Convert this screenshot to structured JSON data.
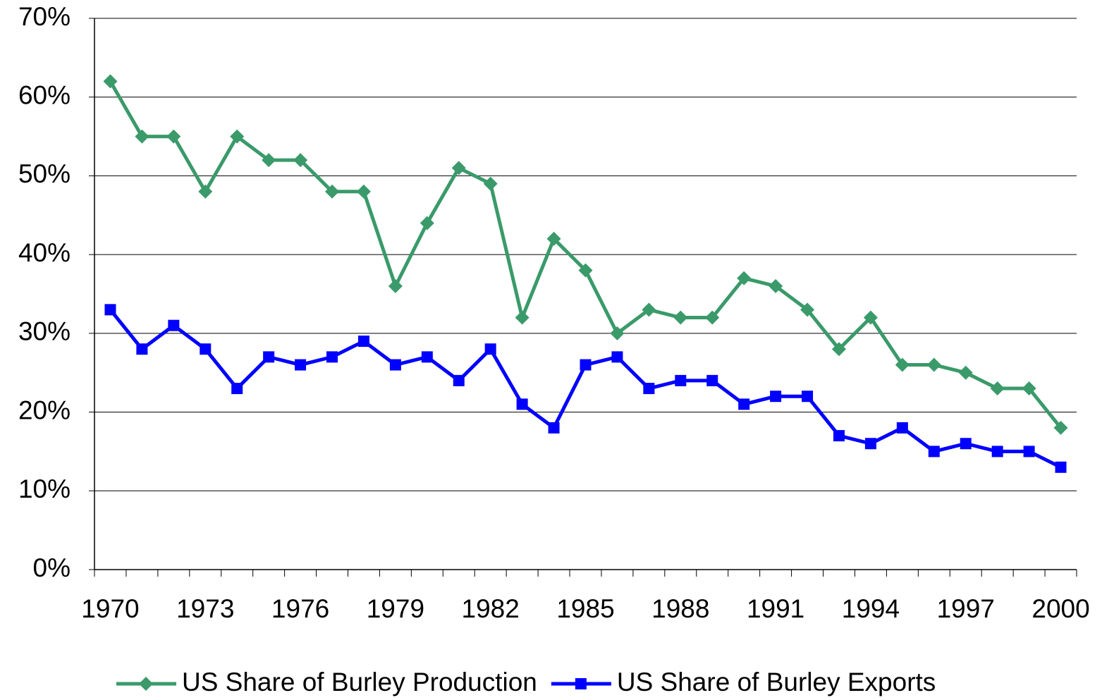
{
  "chart_data": {
    "type": "line",
    "categories": [
      "1970",
      null,
      null,
      "1973",
      null,
      null,
      "1976",
      null,
      null,
      "1979",
      null,
      null,
      "1982",
      null,
      null,
      "1985",
      null,
      null,
      "1988",
      null,
      null,
      "1991",
      null,
      null,
      "1994",
      null,
      null,
      "1997",
      null,
      null,
      "2000"
    ],
    "series": [
      {
        "name": "US Share of Burley Production",
        "color": "#3a9a6a",
        "marker": "diamond",
        "values": [
          62,
          55,
          55,
          48,
          55,
          52,
          52,
          48,
          48,
          36,
          44,
          51,
          49,
          32,
          42,
          38,
          30,
          33,
          32,
          32,
          37,
          36,
          33,
          28,
          32,
          26,
          26,
          25,
          23,
          23,
          18
        ]
      },
      {
        "name": "US Share of Burley Exports",
        "color": "#0000ff",
        "marker": "square",
        "values": [
          33,
          28,
          31,
          28,
          23,
          27,
          26,
          27,
          29,
          26,
          27,
          24,
          28,
          21,
          18,
          26,
          27,
          23,
          24,
          24,
          21,
          22,
          22,
          17,
          16,
          18,
          15,
          16,
          15,
          15,
          13
        ]
      }
    ],
    "ylim": [
      0,
      70
    ],
    "yticks": [
      {
        "value": 0,
        "label": "0%"
      },
      {
        "value": 10,
        "label": "10%"
      },
      {
        "value": 20,
        "label": "20%"
      },
      {
        "value": 30,
        "label": "30%"
      },
      {
        "value": 40,
        "label": "40%"
      },
      {
        "value": 50,
        "label": "50%"
      },
      {
        "value": 60,
        "label": "60%"
      },
      {
        "value": 70,
        "label": "70%"
      }
    ],
    "grid": true,
    "legend": "bottom"
  }
}
